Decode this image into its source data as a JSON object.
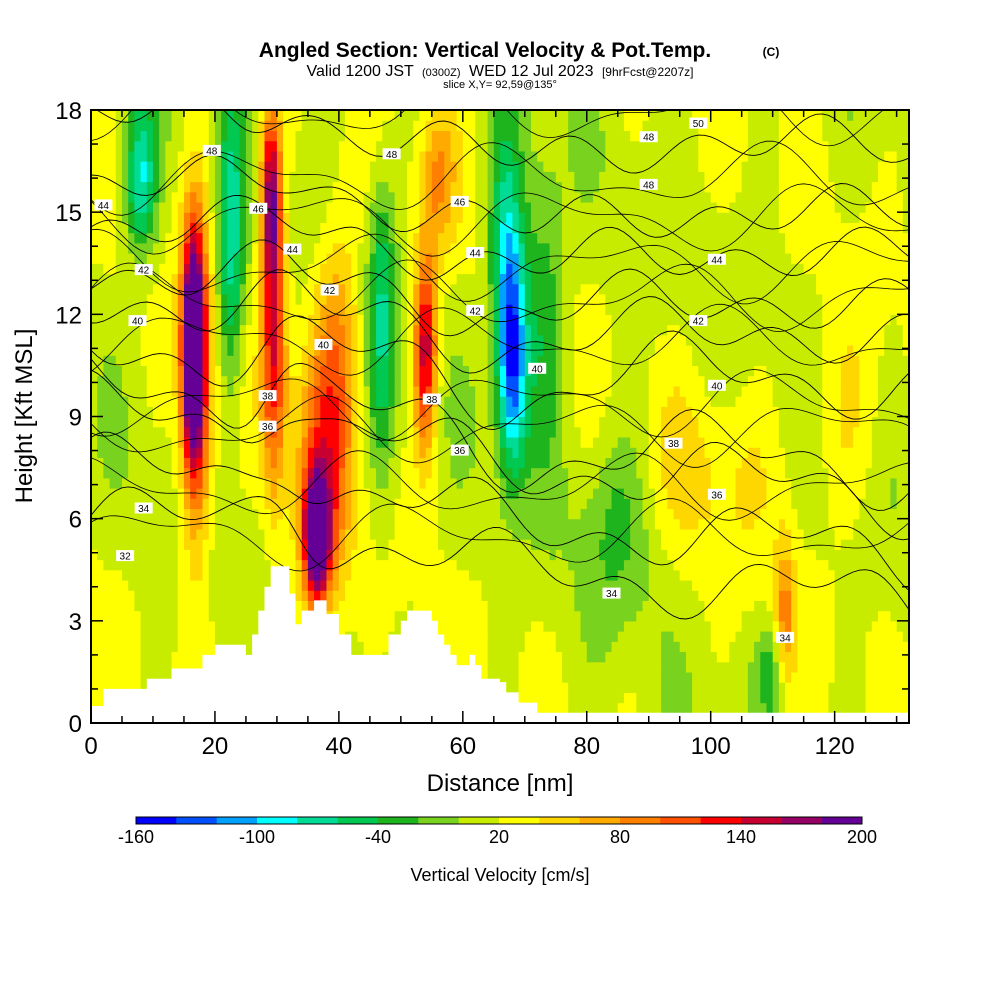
{
  "header": {
    "title": "Angled Section: Vertical Velocity & Pot.Temp.",
    "copyright": "(C)",
    "valid_prefix": "Valid 1200 JST",
    "valid_utc": "(0300Z)",
    "valid_date": "WED 12 Jul 2023",
    "forecast": "[9hrFcst@2207z]",
    "slice": "slice X,Y= 92,59@135°"
  },
  "chart_data": {
    "type": "heatmap",
    "xlabel": "Distance [nm]",
    "ylabel": "Height [Kft MSL]",
    "xlim": [
      0,
      132
    ],
    "ylim": [
      0,
      18
    ],
    "x_ticks": [
      0,
      20,
      40,
      60,
      80,
      100,
      120
    ],
    "y_ticks": [
      0,
      3,
      6,
      9,
      12,
      15,
      18
    ],
    "colorbar": {
      "label": "Vertical Velocity [cm/s]",
      "min": -160,
      "max": 200,
      "tick_labels": [
        -160,
        -100,
        -40,
        20,
        80,
        140,
        200
      ],
      "colors": [
        "#0000ff",
        "#0050ff",
        "#00a0ff",
        "#00ffff",
        "#00dc96",
        "#00c850",
        "#1eb41e",
        "#78d21e",
        "#c8ec00",
        "#ffff00",
        "#ffd700",
        "#ffaa00",
        "#ff8000",
        "#ff5000",
        "#ff0000",
        "#c80032",
        "#960064",
        "#640096"
      ]
    },
    "features": [
      {
        "x": 16.5,
        "y_range": [
          7.5,
          13.5
        ],
        "w_max": 200
      },
      {
        "x": 29,
        "y_range": [
          8,
          17.5
        ],
        "w_max": 140
      },
      {
        "x": 36.5,
        "y_range": [
          3.5,
          7.5
        ],
        "w_max": 200
      },
      {
        "x": 54,
        "y_range": [
          8.5,
          13
        ],
        "w_max": 140
      },
      {
        "x": 68,
        "y_range": [
          8,
          14
        ],
        "w_max": -100
      },
      {
        "x": 112,
        "y_range": [
          1,
          5
        ],
        "w_max": 80
      }
    ],
    "terrain": [
      [
        0,
        0.5
      ],
      [
        2,
        1
      ],
      [
        6,
        1
      ],
      [
        9,
        1.3
      ],
      [
        13,
        1.6
      ],
      [
        17,
        1.6
      ],
      [
        18,
        2
      ],
      [
        20,
        2.3
      ],
      [
        24,
        2.3
      ],
      [
        25,
        2
      ],
      [
        26,
        2.6
      ],
      [
        27,
        3.3
      ],
      [
        28,
        4
      ],
      [
        29,
        4.6
      ],
      [
        31,
        4.6
      ],
      [
        32,
        3.8
      ],
      [
        33,
        2.9
      ],
      [
        34,
        3.3
      ],
      [
        36,
        3.6
      ],
      [
        38,
        3.2
      ],
      [
        40,
        2.6
      ],
      [
        42,
        2
      ],
      [
        46,
        2
      ],
      [
        48,
        2.6
      ],
      [
        50,
        3
      ],
      [
        51,
        3.3
      ],
      [
        53,
        3.3
      ],
      [
        55,
        3
      ],
      [
        56,
        2.6
      ],
      [
        57,
        2.3
      ],
      [
        58,
        2
      ],
      [
        59,
        1.7
      ],
      [
        60,
        1.7
      ],
      [
        61,
        2
      ],
      [
        62,
        1.7
      ],
      [
        63,
        1.3
      ],
      [
        66,
        1.2
      ],
      [
        67,
        0.9
      ],
      [
        69,
        0.6
      ],
      [
        72,
        0.3
      ],
      [
        132,
        0.3
      ]
    ],
    "theta_levels": [
      {
        "value": 32,
        "y": 4.9,
        "label_x": 5.5
      },
      {
        "value": 34,
        "y": 6.3,
        "label_x": 8.5
      },
      {
        "value": 36,
        "y": 8.0,
        "label_x": 33
      },
      {
        "value": 38,
        "y": 8.8,
        "label_x": 33
      },
      {
        "value": 40,
        "y": 10.6,
        "label_x": 7.5
      },
      {
        "value": 42,
        "y": 11.9,
        "label_x": 8.5
      },
      {
        "value": 44,
        "y": 12.8,
        "label_x": 2
      },
      {
        "value": 46,
        "y": 14.2,
        "label_x": 27
      },
      {
        "value": 48,
        "y": 15.4,
        "label_x": 19.5
      },
      {
        "value": 50,
        "y": 17.4,
        "label_x": 98
      }
    ],
    "contour_labels": [
      {
        "text": "44",
        "x": 2,
        "y": 15.2
      },
      {
        "text": "48",
        "x": 19.5,
        "y": 16.8
      },
      {
        "text": "42",
        "x": 8.5,
        "y": 13.3
      },
      {
        "text": "40",
        "x": 7.5,
        "y": 11.8
      },
      {
        "text": "34",
        "x": 8.5,
        "y": 6.3
      },
      {
        "text": "32",
        "x": 5.5,
        "y": 4.9
      },
      {
        "text": "46",
        "x": 27,
        "y": 15.1
      },
      {
        "text": "44",
        "x": 32.5,
        "y": 13.9
      },
      {
        "text": "42",
        "x": 38.5,
        "y": 12.7
      },
      {
        "text": "40",
        "x": 37.5,
        "y": 11.1
      },
      {
        "text": "38",
        "x": 28.5,
        "y": 9.6
      },
      {
        "text": "36",
        "x": 28.5,
        "y": 8.7
      },
      {
        "text": "48",
        "x": 48.5,
        "y": 16.7
      },
      {
        "text": "46",
        "x": 59.5,
        "y": 15.3
      },
      {
        "text": "44",
        "x": 62,
        "y": 13.8
      },
      {
        "text": "42",
        "x": 62,
        "y": 12.1
      },
      {
        "text": "38",
        "x": 55,
        "y": 9.5
      },
      {
        "text": "36",
        "x": 59.5,
        "y": 8.0
      },
      {
        "text": "40",
        "x": 72,
        "y": 10.4
      },
      {
        "text": "50",
        "x": 98,
        "y": 17.6
      },
      {
        "text": "48",
        "x": 90,
        "y": 17.2
      },
      {
        "text": "48",
        "x": 90,
        "y": 15.8
      },
      {
        "text": "44",
        "x": 101,
        "y": 13.6
      },
      {
        "text": "42",
        "x": 98,
        "y": 11.8
      },
      {
        "text": "40",
        "x": 101,
        "y": 9.9
      },
      {
        "text": "38",
        "x": 94,
        "y": 8.2
      },
      {
        "text": "36",
        "x": 101,
        "y": 6.7
      },
      {
        "text": "34",
        "x": 84,
        "y": 3.8
      },
      {
        "text": "34",
        "x": 112,
        "y": 2.5
      }
    ]
  }
}
